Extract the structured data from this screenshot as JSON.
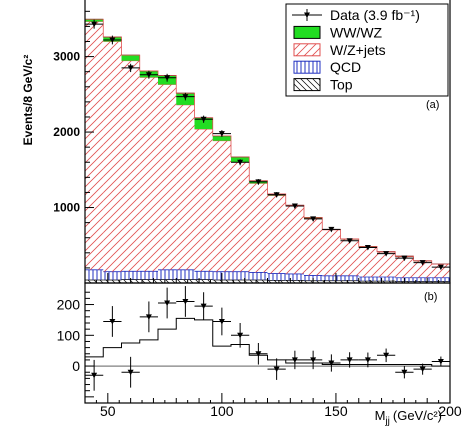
{
  "chart_data": [
    {
      "type": "bar",
      "subtype": "stacked-histogram-with-data-points",
      "panel_label": "(a)",
      "ylabel": "Events/8 GeV/c²",
      "yticks": [
        1000,
        2000,
        3000
      ],
      "xlim": [
        40,
        200
      ],
      "ylim": [
        0,
        3750
      ],
      "bin_edges": [
        40,
        48,
        56,
        64,
        72,
        80,
        88,
        96,
        104,
        112,
        120,
        128,
        136,
        144,
        152,
        160,
        168,
        176,
        184,
        192,
        200
      ],
      "legend": {
        "placement": "top-right",
        "entries": [
          "Data (3.9 fb⁻¹)",
          "WW/WZ",
          "W/Z+jets",
          "QCD",
          "Top"
        ]
      },
      "series": [
        {
          "name": "Top",
          "values": [
            40,
            40,
            45,
            45,
            45,
            45,
            45,
            40,
            40,
            40,
            35,
            35,
            30,
            30,
            30,
            25,
            25,
            20,
            20,
            20
          ]
        },
        {
          "name": "QCD",
          "values": [
            135,
            110,
            110,
            110,
            130,
            130,
            110,
            110,
            110,
            100,
            90,
            85,
            70,
            65,
            65,
            55,
            55,
            50,
            50,
            50
          ]
        },
        {
          "name": "W/Z+jets",
          "values": [
            3290,
            3050,
            2790,
            2570,
            2455,
            2185,
            1885,
            1735,
            1450,
            1180,
            1035,
            900,
            760,
            610,
            485,
            400,
            330,
            280,
            220,
            180
          ]
        },
        {
          "name": "WW/WZ",
          "values": [
            30,
            60,
            75,
            85,
            120,
            155,
            150,
            65,
            70,
            35,
            20,
            10,
            10,
            5,
            5,
            5,
            5,
            5,
            5,
            0
          ]
        },
        {
          "name": "Data (3.9 fb⁻¹)",
          "values": [
            3430,
            3220,
            2850,
            2760,
            2720,
            2470,
            2170,
            1980,
            1600,
            1340,
            1170,
            1020,
            850,
            710,
            560,
            470,
            390,
            330,
            270,
            210
          ],
          "errors": [
            60,
            58,
            55,
            53,
            52,
            50,
            48,
            45,
            40,
            37,
            34,
            32,
            29,
            27,
            24,
            22,
            20,
            18,
            16,
            15
          ]
        }
      ]
    },
    {
      "type": "line",
      "subtype": "background-subtracted-residual",
      "panel_label": "(b)",
      "xlabel": "M_jj (GeV/c²)",
      "xticks": [
        50,
        100,
        150,
        200
      ],
      "yticks": [
        0,
        100,
        200
      ],
      "xlim": [
        40,
        200
      ],
      "ylim": [
        -120,
        270
      ],
      "bin_edges": [
        40,
        48,
        56,
        64,
        72,
        80,
        88,
        96,
        104,
        112,
        120,
        128,
        136,
        144,
        152,
        160,
        168,
        176,
        184,
        192,
        200
      ],
      "series": [
        {
          "name": "WW/WZ",
          "values": [
            30,
            60,
            75,
            85,
            120,
            155,
            150,
            65,
            70,
            35,
            20,
            10,
            10,
            5,
            5,
            5,
            5,
            5,
            5,
            0
          ]
        },
        {
          "name": "Data",
          "x": [
            44,
            52,
            60,
            68,
            76,
            84,
            92,
            100,
            108,
            116,
            124,
            132,
            140,
            148,
            156,
            164,
            172,
            180,
            188,
            196
          ],
          "values": [
            -30,
            145,
            -20,
            160,
            205,
            210,
            195,
            145,
            100,
            40,
            -10,
            20,
            20,
            10,
            20,
            20,
            35,
            -20,
            -10,
            15
          ],
          "errors": [
            50,
            50,
            50,
            50,
            50,
            50,
            45,
            45,
            40,
            35,
            35,
            30,
            30,
            28,
            25,
            24,
            22,
            20,
            18,
            16
          ]
        }
      ]
    }
  ]
}
